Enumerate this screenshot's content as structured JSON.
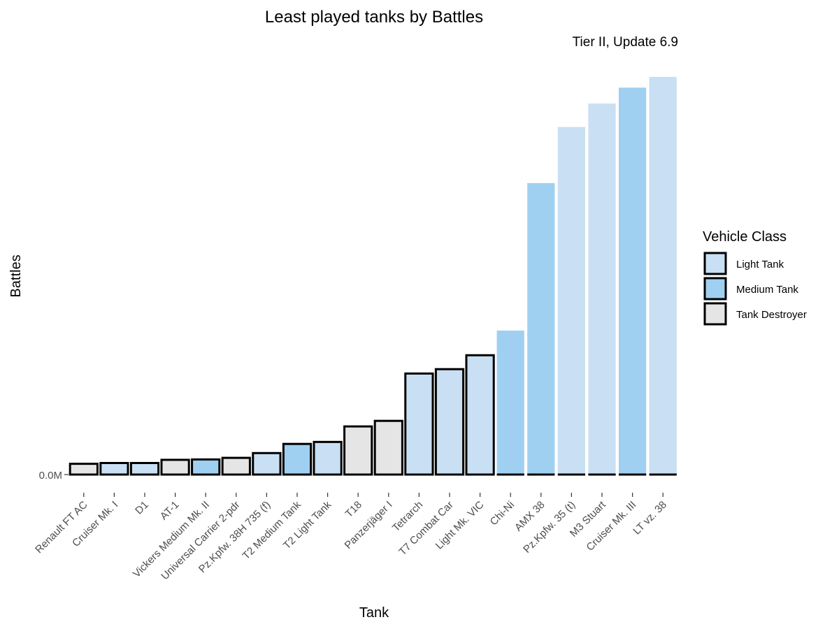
{
  "chart_data": {
    "type": "bar",
    "title": "Least played tanks by Battles",
    "subtitle": "Tier II, Update 6.9",
    "xlabel": "Tank",
    "ylabel": "Battles",
    "y_tick_label": "0.0M",
    "ylim": [
      0,
      1.0
    ],
    "grid": false,
    "legend": {
      "title": "Vehicle Class",
      "position": "right",
      "entries": [
        {
          "name": "Light Tank",
          "color": "#c9dff3"
        },
        {
          "name": "Medium Tank",
          "color": "#9fd0f1"
        },
        {
          "name": "Tank Destroyer",
          "color": "#e5e5e5"
        }
      ]
    },
    "bars": [
      {
        "category": "Renault FT AC",
        "class": "Tank Destroyer",
        "value": 0.027,
        "outlined": true
      },
      {
        "category": "Cruiser Mk. I",
        "class": "Light Tank",
        "value": 0.029,
        "outlined": true
      },
      {
        "category": "D1",
        "class": "Light Tank",
        "value": 0.029,
        "outlined": true
      },
      {
        "category": "AT-1",
        "class": "Tank Destroyer",
        "value": 0.037,
        "outlined": true
      },
      {
        "category": "Vickers Medium Mk. II",
        "class": "Medium Tank",
        "value": 0.038,
        "outlined": true
      },
      {
        "category": "Universal Carrier 2-pdr",
        "class": "Tank Destroyer",
        "value": 0.042,
        "outlined": true
      },
      {
        "category": "Pz.Kpfw. 38H 735 (f)",
        "class": "Light Tank",
        "value": 0.054,
        "outlined": true
      },
      {
        "category": "T2 Medium Tank",
        "class": "Medium Tank",
        "value": 0.077,
        "outlined": true
      },
      {
        "category": "T2 Light Tank",
        "class": "Light Tank",
        "value": 0.082,
        "outlined": true
      },
      {
        "category": "T18",
        "class": "Tank Destroyer",
        "value": 0.121,
        "outlined": true
      },
      {
        "category": "Panzerjäger I",
        "class": "Tank Destroyer",
        "value": 0.135,
        "outlined": true
      },
      {
        "category": "Tetrarch",
        "class": "Light Tank",
        "value": 0.254,
        "outlined": true
      },
      {
        "category": "T7 Combat Car",
        "class": "Light Tank",
        "value": 0.265,
        "outlined": true
      },
      {
        "category": "Light Mk. VIC",
        "class": "Light Tank",
        "value": 0.3,
        "outlined": true
      },
      {
        "category": "Chi-Ni",
        "class": "Medium Tank",
        "value": 0.362,
        "outlined": false
      },
      {
        "category": "AMX 38",
        "class": "Medium Tank",
        "value": 0.733,
        "outlined": false
      },
      {
        "category": "Pz.Kpfw. 35 (t)",
        "class": "Light Tank",
        "value": 0.874,
        "outlined": false
      },
      {
        "category": "M3 Stuart",
        "class": "Light Tank",
        "value": 0.933,
        "outlined": false
      },
      {
        "category": "Cruiser Mk. III",
        "class": "Medium Tank",
        "value": 0.973,
        "outlined": false
      },
      {
        "category": "LT vz. 38",
        "class": "Light Tank",
        "value": 1.0,
        "outlined": false
      }
    ]
  }
}
